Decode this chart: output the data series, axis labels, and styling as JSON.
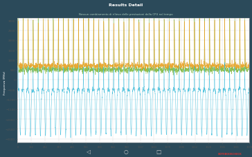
{
  "title": "Results Detail",
  "subtitle": "Nessun cambiamento di rilievo delle prestazioni della CPU nel tempo",
  "ylabel": "Frequenza (MHz)",
  "bg_color": "#2b4a5a",
  "plot_bg": "#ffffff",
  "header_color": "#1e3d52",
  "nav_color": "#1a1a1a",
  "colors": {
    "orange": "#e8a020",
    "green": "#80b840",
    "blue": "#30b8d8"
  },
  "y_max": 3000,
  "y_min": -3200,
  "yticks": [
    3000,
    2500,
    2000,
    1500,
    1000,
    500,
    0,
    -500,
    -1000,
    -1500,
    -2000,
    -2500,
    -3000
  ],
  "num_cycles": 46,
  "n_points": 2000,
  "spike_period": 43,
  "orange_peak": 2800,
  "green_peak": 2950,
  "orange_base": 700,
  "green_base": 500,
  "blue_spike_up": 700,
  "blue_trough": -2800,
  "blue_base": -500
}
